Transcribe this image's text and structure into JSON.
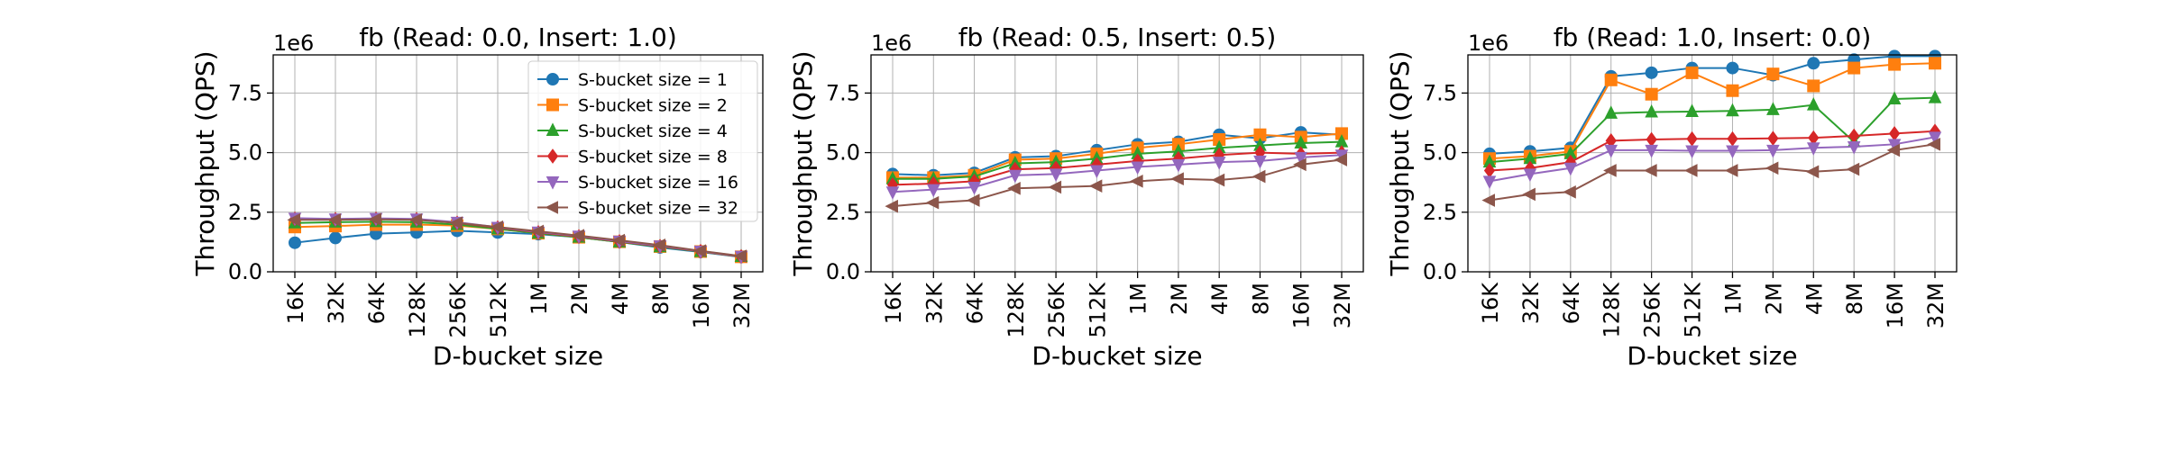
{
  "figure": {
    "xlabel": "D-bucket size",
    "ylabel": "Throughput (QPS)",
    "offset_text": "1e6",
    "colors": [
      "#1f77b4",
      "#ff7f0e",
      "#2ca02c",
      "#d62728",
      "#9467bd",
      "#8c564b"
    ],
    "markers": [
      "circle",
      "square",
      "triangle-up",
      "diamond",
      "triangle-down",
      "triangle-left"
    ]
  },
  "chart_data": [
    {
      "type": "line",
      "title": "fb (Read: 0.0, Insert: 1.0)",
      "xlabel": "D-bucket size",
      "ylabel": "Throughput (QPS)",
      "y_scale_factor": "1e6",
      "categories": [
        "16K",
        "32K",
        "64K",
        "128K",
        "256K",
        "512K",
        "1M",
        "2M",
        "4M",
        "8M",
        "16M",
        "32M"
      ],
      "ylim": [
        0,
        9.1
      ],
      "yticks": [
        "0.0",
        "2.5",
        "5.0",
        "7.5"
      ],
      "ytick_values": [
        0,
        2.5,
        5,
        7.5
      ],
      "grid": true,
      "legend": "upper-right",
      "series": [
        {
          "name": "S-bucket size = 1",
          "values": [
            1.22,
            1.42,
            1.6,
            1.65,
            1.72,
            1.65,
            1.58,
            1.45,
            1.25,
            1.02,
            0.83,
            0.62
          ]
        },
        {
          "name": "S-bucket size = 2",
          "values": [
            1.88,
            1.92,
            1.98,
            1.98,
            1.94,
            1.8,
            1.62,
            1.45,
            1.26,
            1.06,
            0.85,
            0.63
          ]
        },
        {
          "name": "S-bucket size = 4",
          "values": [
            2.05,
            2.08,
            2.1,
            2.08,
            1.98,
            1.8,
            1.62,
            1.45,
            1.25,
            1.05,
            0.85,
            0.64
          ]
        },
        {
          "name": "S-bucket size = 8",
          "values": [
            2.22,
            2.2,
            2.22,
            2.2,
            2.05,
            1.85,
            1.65,
            1.48,
            1.27,
            1.07,
            0.86,
            0.64
          ]
        },
        {
          "name": "S-bucket size = 16",
          "values": [
            2.25,
            2.22,
            2.24,
            2.22,
            2.08,
            1.87,
            1.67,
            1.5,
            1.29,
            1.09,
            0.87,
            0.65
          ]
        },
        {
          "name": "S-bucket size = 32",
          "values": [
            2.18,
            2.18,
            2.2,
            2.18,
            2.05,
            1.88,
            1.7,
            1.52,
            1.32,
            1.12,
            0.88,
            0.66
          ]
        }
      ]
    },
    {
      "type": "line",
      "title": "fb (Read: 0.5, Insert: 0.5)",
      "xlabel": "D-bucket size",
      "ylabel": "Throughput (QPS)",
      "y_scale_factor": "1e6",
      "categories": [
        "16K",
        "32K",
        "64K",
        "128K",
        "256K",
        "512K",
        "1M",
        "2M",
        "4M",
        "8M",
        "16M",
        "32M"
      ],
      "ylim": [
        0,
        9.1
      ],
      "yticks": [
        "0.0",
        "2.5",
        "5.0",
        "7.5"
      ],
      "ytick_values": [
        0,
        2.5,
        5,
        7.5
      ],
      "grid": true,
      "series": [
        {
          "name": "S-bucket size = 1",
          "values": [
            4.1,
            4.05,
            4.15,
            4.8,
            4.85,
            5.1,
            5.35,
            5.45,
            5.75,
            5.6,
            5.85,
            5.75
          ]
        },
        {
          "name": "S-bucket size = 2",
          "values": [
            3.95,
            3.95,
            4.05,
            4.7,
            4.75,
            4.95,
            5.2,
            5.35,
            5.55,
            5.75,
            5.65,
            5.8
          ]
        },
        {
          "name": "S-bucket size = 4",
          "values": [
            3.9,
            3.9,
            4.0,
            4.55,
            4.6,
            4.75,
            4.95,
            5.05,
            5.2,
            5.3,
            5.4,
            5.45
          ]
        },
        {
          "name": "S-bucket size = 8",
          "values": [
            3.65,
            3.7,
            3.8,
            4.3,
            4.35,
            4.5,
            4.65,
            4.75,
            4.9,
            5.0,
            4.95,
            5.0
          ]
        },
        {
          "name": "S-bucket size = 16",
          "values": [
            3.35,
            3.45,
            3.55,
            4.05,
            4.1,
            4.25,
            4.4,
            4.5,
            4.6,
            4.65,
            4.8,
            4.9
          ]
        },
        {
          "name": "S-bucket size = 32",
          "values": [
            2.75,
            2.9,
            3.0,
            3.5,
            3.55,
            3.6,
            3.8,
            3.9,
            3.85,
            4.0,
            4.5,
            4.7
          ]
        }
      ]
    },
    {
      "type": "line",
      "title": "fb (Read: 1.0, Insert: 0.0)",
      "xlabel": "D-bucket size",
      "ylabel": "Throughput (QPS)",
      "y_scale_factor": "1e6",
      "categories": [
        "16K",
        "32K",
        "64K",
        "128K",
        "256K",
        "512K",
        "1M",
        "2M",
        "4M",
        "8M",
        "16M",
        "32M"
      ],
      "ylim": [
        0,
        9.1
      ],
      "yticks": [
        "0.0",
        "2.5",
        "5.0",
        "7.5"
      ],
      "ytick_values": [
        0,
        2.5,
        5,
        7.5
      ],
      "grid": true,
      "series": [
        {
          "name": "S-bucket size = 1",
          "values": [
            4.95,
            5.05,
            5.2,
            8.2,
            8.35,
            8.55,
            8.55,
            8.25,
            8.75,
            8.9,
            9.05,
            9.05
          ]
        },
        {
          "name": "S-bucket size = 2",
          "values": [
            4.75,
            4.85,
            5.05,
            8.05,
            7.45,
            8.35,
            7.6,
            8.3,
            7.8,
            8.55,
            8.7,
            8.75
          ]
        },
        {
          "name": "S-bucket size = 4",
          "values": [
            4.6,
            4.75,
            4.95,
            6.65,
            6.7,
            6.72,
            6.75,
            6.8,
            7.0,
            5.45,
            7.25,
            7.3
          ]
        },
        {
          "name": "S-bucket size = 8",
          "values": [
            4.25,
            4.35,
            4.6,
            5.5,
            5.55,
            5.58,
            5.58,
            5.6,
            5.62,
            5.7,
            5.8,
            5.9
          ]
        },
        {
          "name": "S-bucket size = 16",
          "values": [
            3.8,
            4.1,
            4.35,
            5.1,
            5.1,
            5.08,
            5.08,
            5.1,
            5.2,
            5.25,
            5.35,
            5.65
          ]
        },
        {
          "name": "S-bucket size = 32",
          "values": [
            3.0,
            3.25,
            3.35,
            4.25,
            4.25,
            4.25,
            4.25,
            4.35,
            4.2,
            4.3,
            5.1,
            5.35
          ]
        }
      ]
    }
  ]
}
